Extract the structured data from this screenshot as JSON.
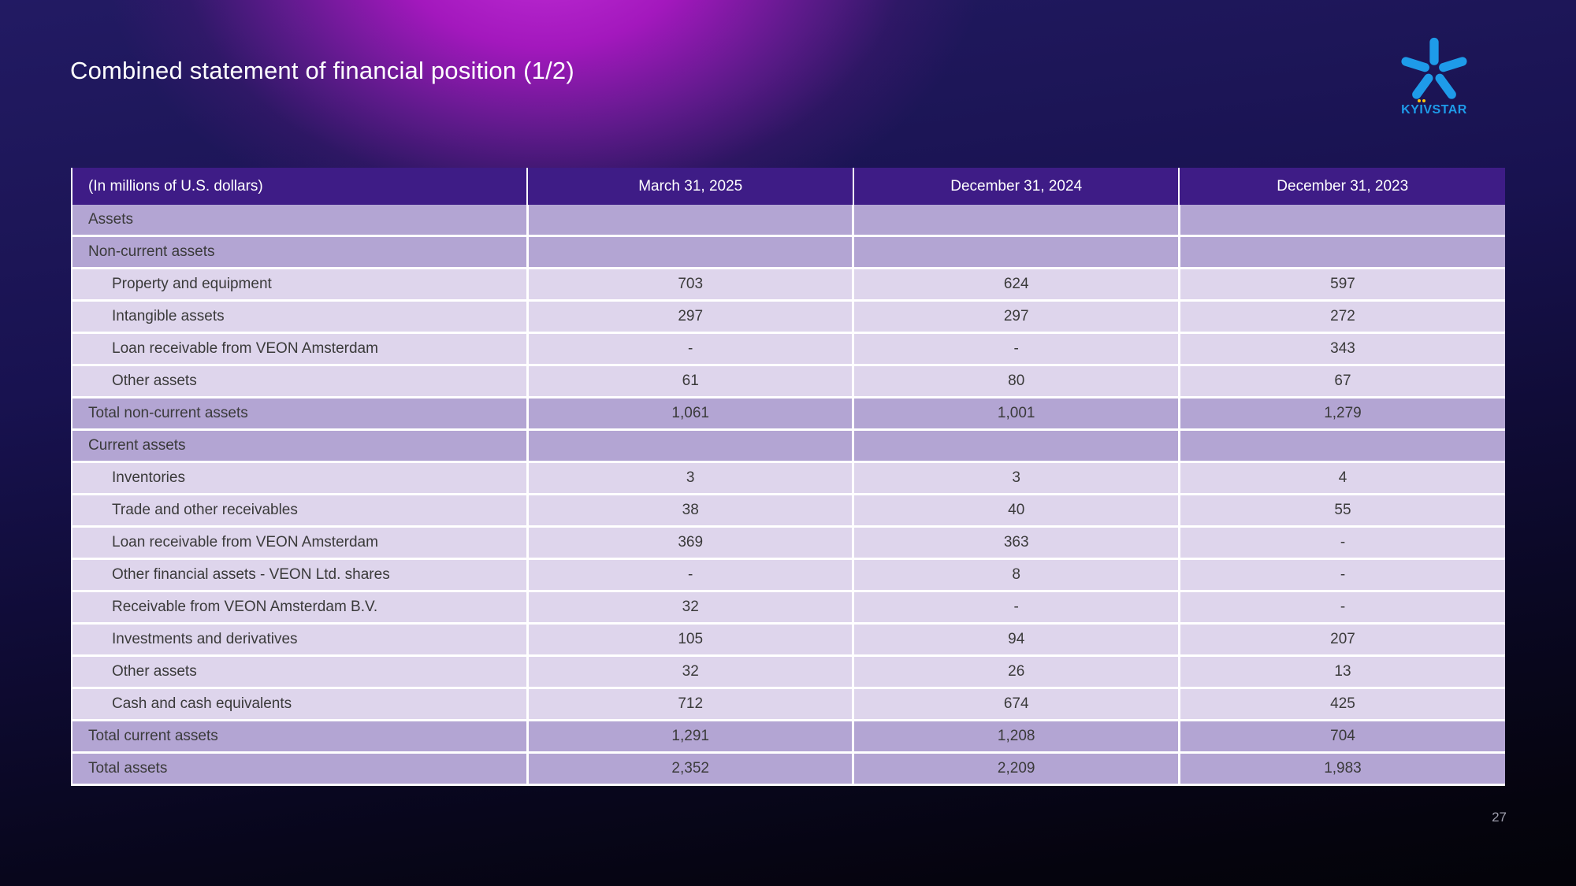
{
  "slide": {
    "title": "Combined statement of financial position (1/2)",
    "page_number": "27"
  },
  "logo": {
    "brand_name": "KYЇVSTAR",
    "text_left": "KY",
    "text_i": "I",
    "text_right": "VSTAR",
    "star_color": "#1e9be9",
    "dot_color": "#ffc60b"
  },
  "table": {
    "unit_label": "(In millions of U.S. dollars)",
    "columns": [
      "March 31, 2025",
      "December 31, 2024",
      "December 31, 2023"
    ],
    "colors": {
      "header_bg": "#3e1c86",
      "header_text": "#ffffff",
      "section_bg": "#b3a5d3",
      "item_bg": "#ded5ec",
      "body_text": "#3a3a3a"
    },
    "rows": [
      {
        "label": "Assets",
        "type": "section",
        "indent": 0,
        "values": [
          "",
          "",
          ""
        ]
      },
      {
        "label": "Non-current assets",
        "type": "section",
        "indent": 0,
        "values": [
          "",
          "",
          ""
        ]
      },
      {
        "label": "Property and equipment",
        "type": "item",
        "indent": 1,
        "values": [
          "703",
          "624",
          "597"
        ]
      },
      {
        "label": "Intangible assets",
        "type": "item",
        "indent": 1,
        "values": [
          "297",
          "297",
          "272"
        ]
      },
      {
        "label": "Loan receivable from VEON Amsterdam",
        "type": "item",
        "indent": 1,
        "values": [
          "-",
          "-",
          "343"
        ]
      },
      {
        "label": "Other assets",
        "type": "item",
        "indent": 1,
        "values": [
          "61",
          "80",
          "67"
        ]
      },
      {
        "label": "Total non-current assets",
        "type": "total",
        "indent": 0,
        "values": [
          "1,061",
          "1,001",
          "1,279"
        ]
      },
      {
        "label": "Current assets",
        "type": "section",
        "indent": 0,
        "values": [
          "",
          "",
          ""
        ]
      },
      {
        "label": "Inventories",
        "type": "item",
        "indent": 1,
        "values": [
          "3",
          "3",
          "4"
        ]
      },
      {
        "label": "Trade and other receivables",
        "type": "item",
        "indent": 1,
        "values": [
          "38",
          "40",
          "55"
        ]
      },
      {
        "label": "Loan receivable from VEON Amsterdam",
        "type": "item",
        "indent": 1,
        "values": [
          "369",
          "363",
          "-"
        ]
      },
      {
        "label": "Other financial assets - VEON Ltd. shares",
        "type": "item",
        "indent": 1,
        "values": [
          "-",
          "8",
          "-"
        ]
      },
      {
        "label": "Receivable from VEON Amsterdam B.V.",
        "type": "item",
        "indent": 1,
        "values": [
          "32",
          "-",
          "-"
        ]
      },
      {
        "label": "Investments and derivatives",
        "type": "item",
        "indent": 1,
        "values": [
          "105",
          "94",
          "207"
        ]
      },
      {
        "label": "Other assets",
        "type": "item",
        "indent": 1,
        "values": [
          "32",
          "26",
          "13"
        ]
      },
      {
        "label": "Cash and cash equivalents",
        "type": "item",
        "indent": 1,
        "values": [
          "712",
          "674",
          "425"
        ]
      },
      {
        "label": "Total current assets",
        "type": "total",
        "indent": 0,
        "values": [
          "1,291",
          "1,208",
          "704"
        ]
      },
      {
        "label": "Total assets",
        "type": "total",
        "indent": 0,
        "values": [
          "2,352",
          "2,209",
          "1,983"
        ]
      }
    ]
  }
}
